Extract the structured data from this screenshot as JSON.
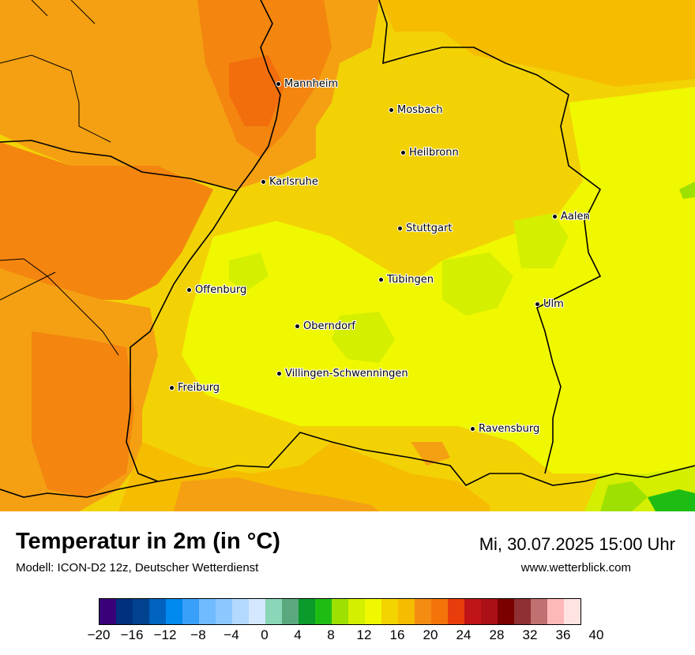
{
  "title": "Temperatur in 2m (in °C)",
  "subtitle": "Modell: ICON-D2 12z, Deutscher Wetterdienst",
  "datetime": "Mi, 30.07.2025 15:00 Uhr",
  "website": "www.wetterblick.com",
  "cities": [
    {
      "name": "Mannheim"
    },
    {
      "name": "Mosbach"
    },
    {
      "name": "Heilbronn"
    },
    {
      "name": "Karlsruhe"
    },
    {
      "name": "Aalen"
    },
    {
      "name": "Stuttgart"
    },
    {
      "name": "Tübingen"
    },
    {
      "name": "Offenburg"
    },
    {
      "name": "Ulm"
    },
    {
      "name": "Oberndorf"
    },
    {
      "name": "Villingen-Schwenningen"
    },
    {
      "name": "Freiburg"
    },
    {
      "name": "Ravensburg"
    }
  ],
  "legend": {
    "colors": [
      "#3a007a",
      "#00307e",
      "#00428e",
      "#0063c0",
      "#0089ee",
      "#38a0f8",
      "#70baff",
      "#8cc8ff",
      "#b3d9ff",
      "#d4e8ff",
      "#8ad6b8",
      "#5ca87e",
      "#0a9b2c",
      "#1fbd14",
      "#9ee000",
      "#d4ef00",
      "#f0f800",
      "#f4d400",
      "#f6bc00",
      "#f48c12",
      "#f4740a",
      "#e83c0c",
      "#c01418",
      "#aa1016",
      "#7a0000",
      "#8e3034",
      "#c07070",
      "#ffb8b8",
      "#ffe2e2"
    ],
    "tick_labels": [
      "−20",
      "−16",
      "−12",
      "−8",
      "−4",
      "0",
      "4",
      "8",
      "12",
      "16",
      "20",
      "24",
      "28",
      "32",
      "36",
      "40"
    ]
  }
}
